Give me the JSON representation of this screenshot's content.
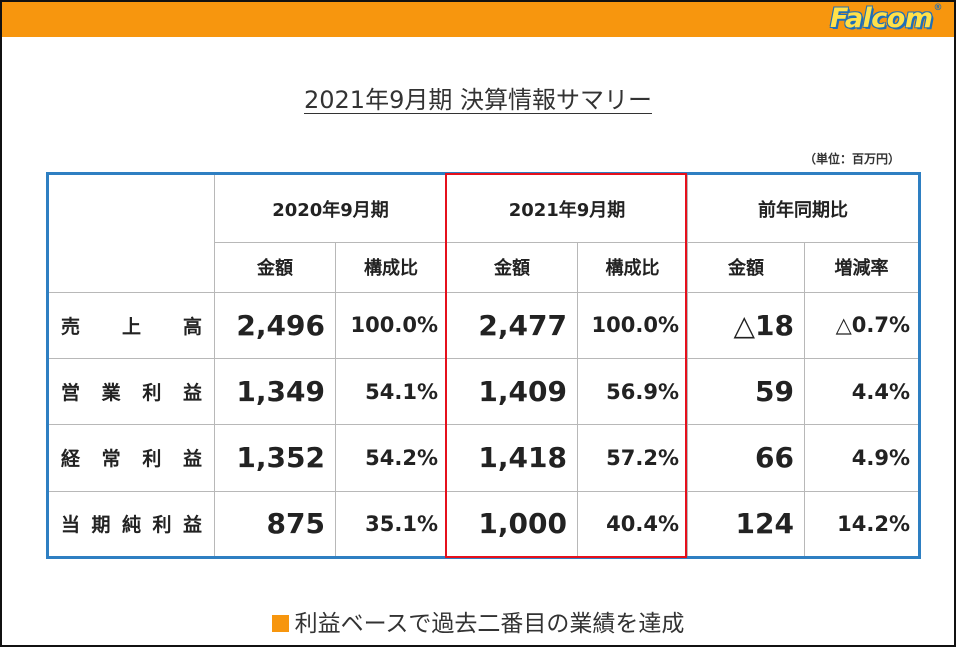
{
  "header": {
    "logo_text": "Falcom",
    "logo_reg": "®",
    "bar_color": "#f7960e"
  },
  "title": "2021年9月期 決算情報サマリー",
  "unit_note": "（単位：百万円）",
  "table": {
    "group_headers": [
      "2020年9月期",
      "2021年9月期",
      "前年同期比"
    ],
    "sub_headers": [
      "金額",
      "構成比",
      "金額",
      "構成比",
      "金額",
      "増減率"
    ],
    "rows": [
      {
        "label": "売上高",
        "values": [
          "2,496",
          "100.0%",
          "2,477",
          "100.0%",
          "△18",
          "△0.7%"
        ]
      },
      {
        "label": "営業利益",
        "values": [
          "1,349",
          "54.1%",
          "1,409",
          "56.9%",
          "59",
          "4.4%"
        ]
      },
      {
        "label": "経常利益",
        "values": [
          "1,352",
          "54.2%",
          "1,418",
          "57.2%",
          "66",
          "4.9%"
        ]
      },
      {
        "label": "当期純利益",
        "values": [
          "875",
          "35.1%",
          "1,000",
          "40.4%",
          "124",
          "14.2%"
        ]
      }
    ],
    "border_color": "#2e7fc2",
    "highlight_color": "#e5101c"
  },
  "footer_note": "利益ベースで過去二番目の業績を達成"
}
